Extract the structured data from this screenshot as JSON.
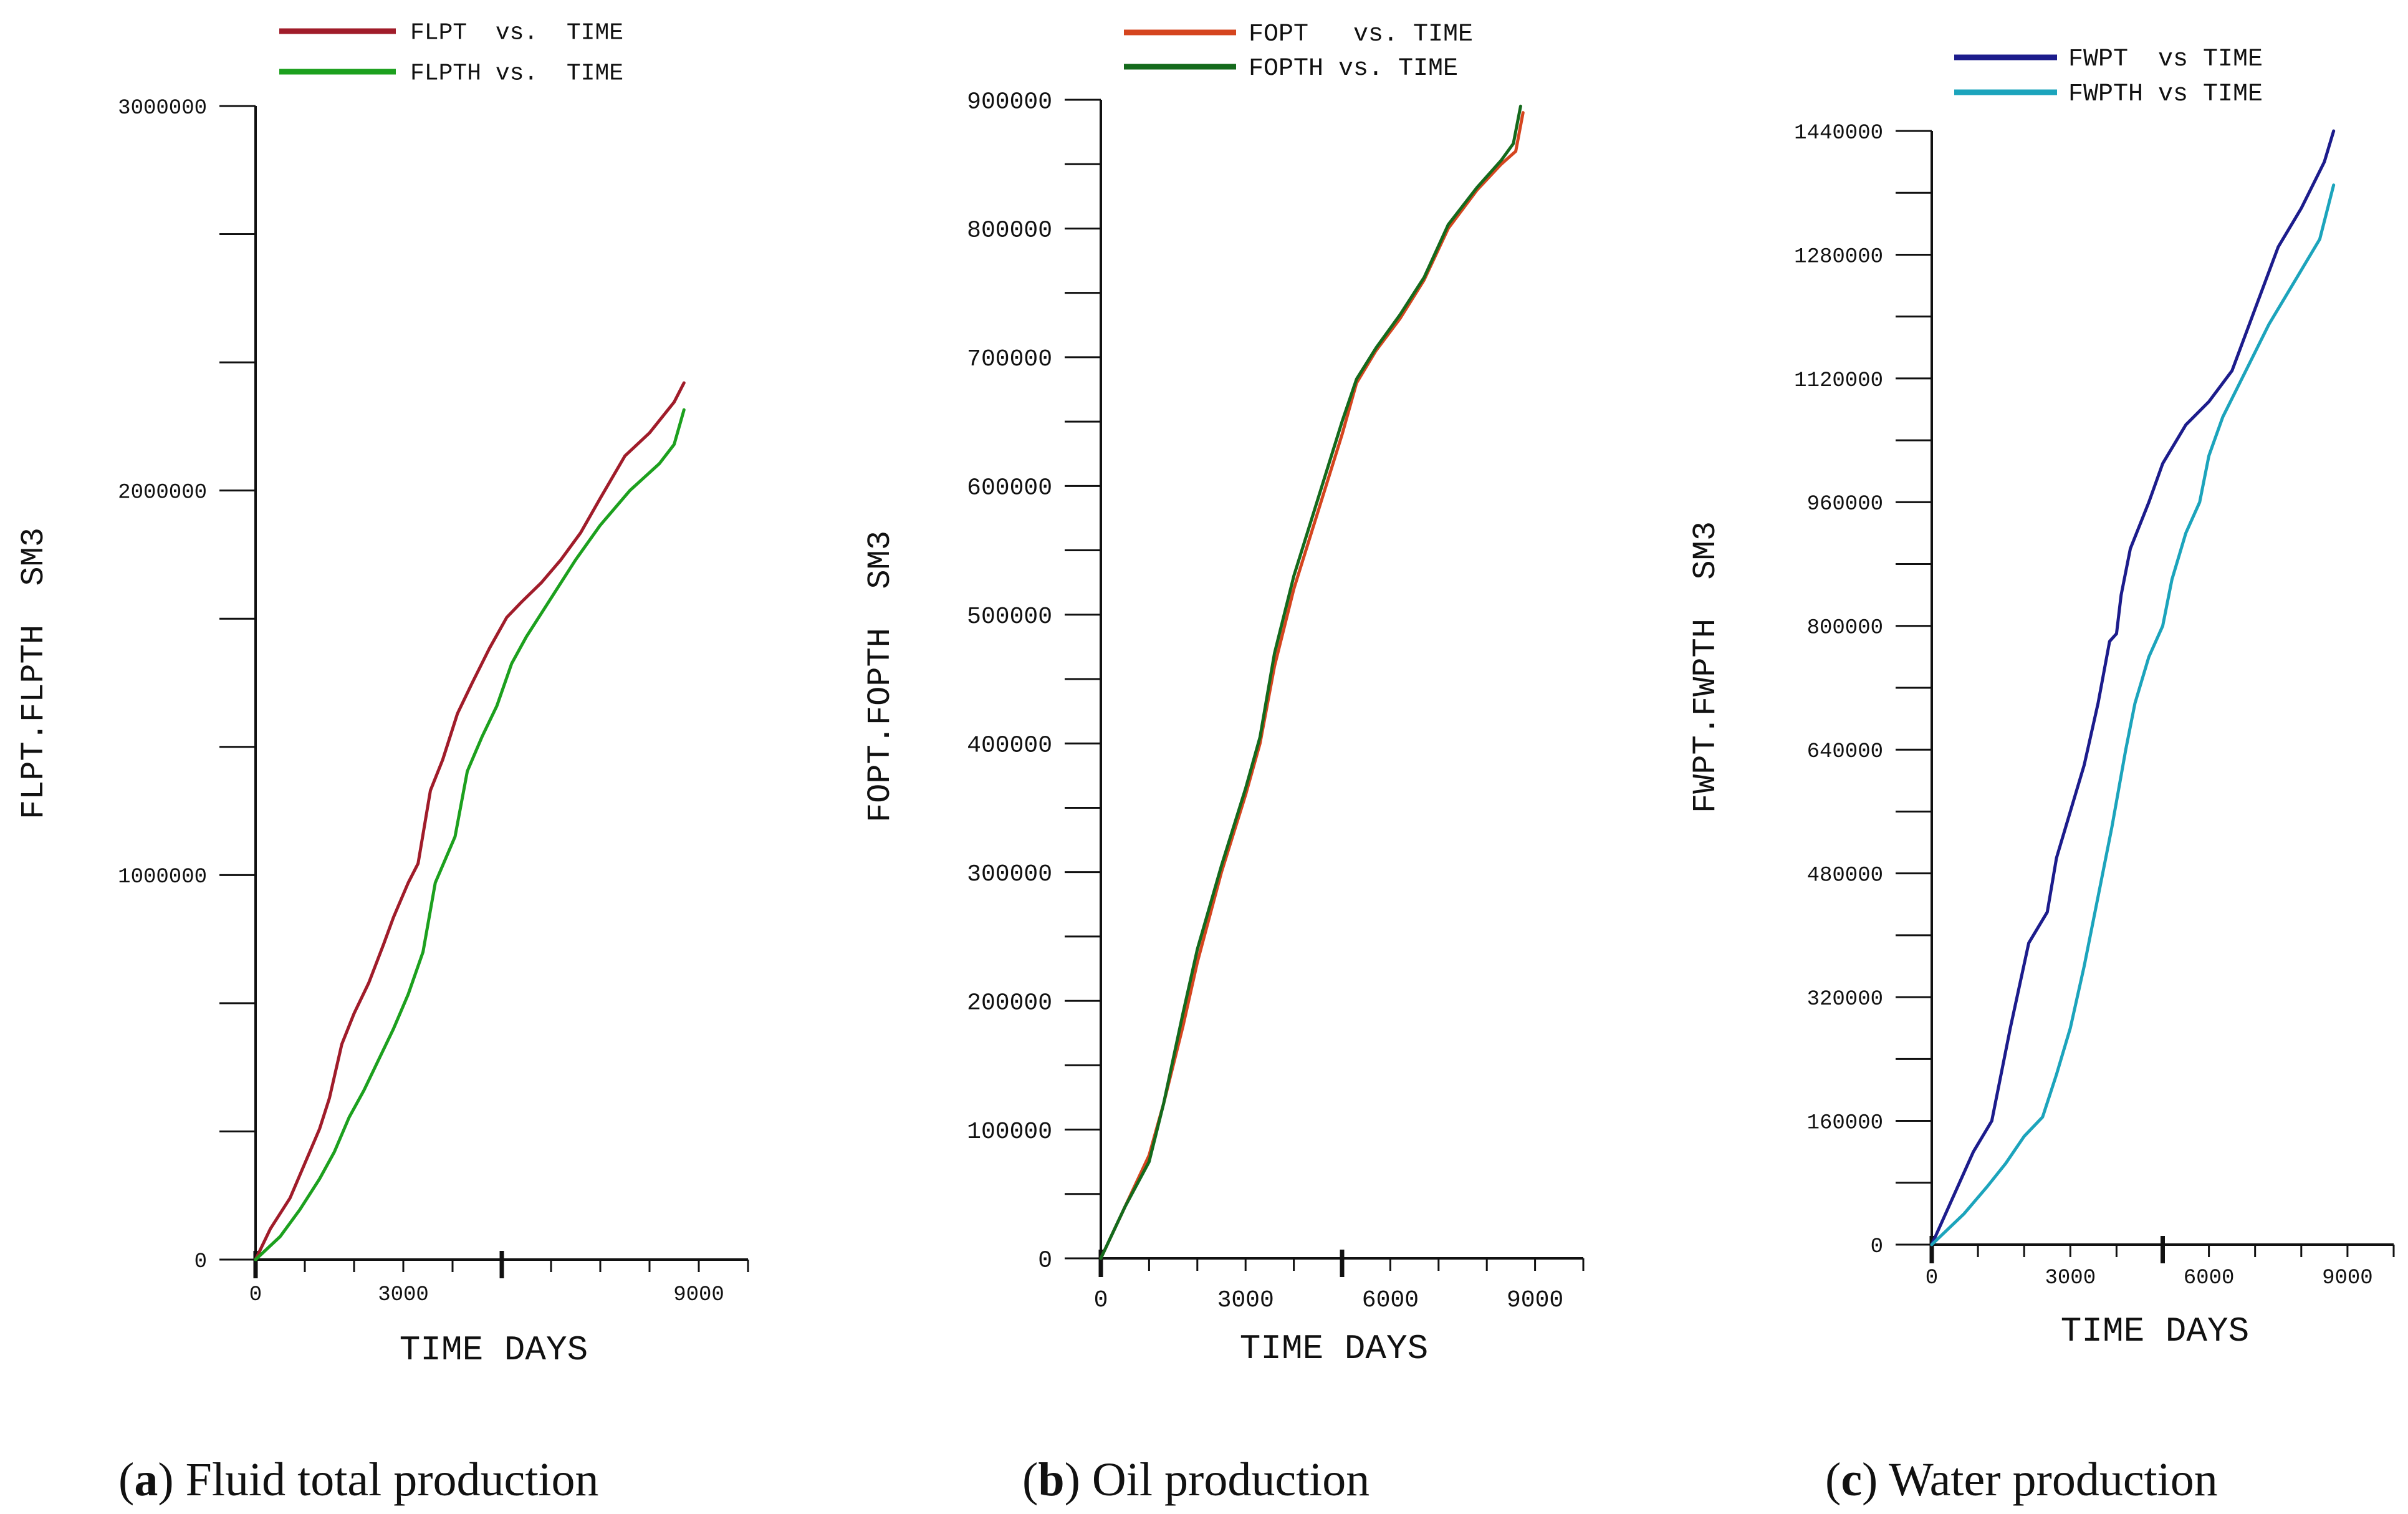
{
  "chart_data": [
    {
      "type": "line",
      "panel": "a",
      "ylabel": "FLPT.FLPTH  SM3",
      "xlabel": "TIME DAYS",
      "xlim": [
        0,
        10000
      ],
      "ylim": [
        0,
        3000000
      ],
      "xticks": [
        0,
        3000,
        9000
      ],
      "xtick_labels": [
        "0",
        "3000",
        "9000"
      ],
      "yticks": [
        0,
        1000000,
        2000000,
        3000000
      ],
      "ytick_labels": [
        "0",
        "1000000",
        "2000000",
        "3000000"
      ],
      "x_major_ticks": [
        0,
        5000
      ],
      "y_minor_step": 333333.333,
      "legend": {
        "position": "top",
        "entries": [
          "FLPT  vs.  TIME",
          "FLPTH vs.  TIME"
        ]
      },
      "series": [
        {
          "name": "FLPT  vs.  TIME",
          "color": "#a01c2a",
          "x": [
            0,
            300,
            700,
            1000,
            1300,
            1500,
            1750,
            2000,
            2300,
            2600,
            2800,
            3100,
            3300,
            3550,
            3800,
            4100,
            4400,
            4750,
            5100,
            5400,
            5800,
            6200,
            6600,
            7000,
            7500,
            8000,
            8500,
            8700
          ],
          "y": [
            0,
            80000,
            160000,
            250000,
            340000,
            420000,
            560000,
            640000,
            720000,
            820000,
            890000,
            980000,
            1030000,
            1220000,
            1300000,
            1420000,
            1500000,
            1590000,
            1670000,
            1710000,
            1760000,
            1820000,
            1890000,
            1980000,
            2090000,
            2150000,
            2230000,
            2280000
          ]
        },
        {
          "name": "FLPTH vs.  TIME",
          "color": "#1ca01e",
          "x": [
            0,
            500,
            900,
            1300,
            1600,
            1900,
            2200,
            2500,
            2800,
            3100,
            3400,
            3650,
            4050,
            4300,
            4600,
            4900,
            5200,
            5500,
            6000,
            6500,
            7000,
            7600,
            8200,
            8500,
            8700
          ],
          "y": [
            0,
            60000,
            130000,
            210000,
            280000,
            370000,
            440000,
            520000,
            600000,
            690000,
            800000,
            980000,
            1100000,
            1270000,
            1360000,
            1440000,
            1550000,
            1620000,
            1720000,
            1820000,
            1910000,
            2000000,
            2070000,
            2120000,
            2210000
          ]
        }
      ]
    },
    {
      "type": "line",
      "panel": "b",
      "ylabel": "FOPT.FOPTH  SM3",
      "xlabel": "TIME DAYS",
      "xlim": [
        0,
        10000
      ],
      "ylim": [
        0,
        900000
      ],
      "xticks": [
        0,
        3000,
        6000,
        9000
      ],
      "xtick_labels": [
        "0",
        "3000",
        "6000",
        "9000"
      ],
      "yticks": [
        0,
        100000,
        200000,
        300000,
        400000,
        500000,
        600000,
        700000,
        800000,
        900000
      ],
      "ytick_labels": [
        "0",
        "100000",
        "200000",
        "300000",
        "400000",
        "500000",
        "600000",
        "700000",
        "800000",
        "900000"
      ],
      "x_major_ticks": [
        0,
        5000
      ],
      "y_minor_step": 50000,
      "legend": {
        "position": "top",
        "entries": [
          "FOPT   vs. TIME",
          "FOPTH vs. TIME"
        ]
      },
      "series": [
        {
          "name": "FOPT   vs. TIME",
          "color": "#d5451f",
          "x": [
            0,
            500,
            1000,
            1300,
            1700,
            2000,
            2500,
            3000,
            3300,
            3600,
            4000,
            4500,
            5000,
            5300,
            5700,
            6200,
            6700,
            7200,
            7800,
            8300,
            8600,
            8750
          ],
          "y": [
            0,
            40000,
            80000,
            120000,
            180000,
            230000,
            300000,
            360000,
            400000,
            460000,
            520000,
            580000,
            640000,
            680000,
            705000,
            730000,
            760000,
            800000,
            830000,
            850000,
            860000,
            890000
          ]
        },
        {
          "name": "FOPTH vs. TIME",
          "color": "#146a1c",
          "x": [
            0,
            500,
            1000,
            1300,
            1700,
            2000,
            2500,
            3000,
            3300,
            3600,
            4000,
            4500,
            5000,
            5300,
            5700,
            6200,
            6700,
            7200,
            7800,
            8300,
            8550,
            8700
          ],
          "y": [
            0,
            40000,
            75000,
            120000,
            190000,
            240000,
            305000,
            365000,
            405000,
            470000,
            530000,
            590000,
            650000,
            683000,
            707000,
            733000,
            762000,
            803000,
            832000,
            853000,
            866000,
            895000
          ]
        }
      ]
    },
    {
      "type": "line",
      "panel": "c",
      "ylabel": "FWPT.FWPTH  SM3",
      "xlabel": "TIME DAYS",
      "xlim": [
        0,
        10000
      ],
      "ylim": [
        0,
        1440000
      ],
      "xticks": [
        0,
        3000,
        6000,
        9000
      ],
      "xtick_labels": [
        "0",
        "3000",
        "6000",
        "9000"
      ],
      "yticks": [
        0,
        160000,
        320000,
        480000,
        640000,
        800000,
        960000,
        1120000,
        1280000,
        1440000
      ],
      "ytick_labels": [
        "0",
        "160000",
        "320000",
        "480000",
        "640000",
        "800000",
        "960000",
        "1120000",
        "1280000",
        "1440000"
      ],
      "x_major_ticks": [
        0,
        5000
      ],
      "y_minor_step": 80000,
      "legend": {
        "position": "top",
        "entries": [
          "FWPT  vs TIME",
          "FWPTH vs TIME"
        ]
      },
      "series": [
        {
          "name": "FWPT  vs TIME",
          "color": "#1c1c8c",
          "x": [
            0,
            900,
            1300,
            1700,
            2100,
            2500,
            2700,
            3000,
            3300,
            3600,
            3850,
            4000,
            4100,
            4300,
            4700,
            5000,
            5500,
            6000,
            6500,
            7000,
            7500,
            8000,
            8500,
            8700
          ],
          "y": [
            0,
            120000,
            160000,
            280000,
            390000,
            430000,
            500000,
            560000,
            620000,
            700000,
            780000,
            790000,
            840000,
            900000,
            960000,
            1010000,
            1060000,
            1090000,
            1130000,
            1210000,
            1290000,
            1340000,
            1400000,
            1440000
          ]
        },
        {
          "name": "FWPTH vs TIME",
          "color": "#1ca4bc",
          "x": [
            0,
            700,
            1200,
            1600,
            2000,
            2400,
            2700,
            3000,
            3300,
            3600,
            3900,
            4200,
            4400,
            4700,
            5000,
            5200,
            5500,
            5800,
            6000,
            6300,
            6800,
            7300,
            7900,
            8400,
            8700
          ],
          "y": [
            0,
            40000,
            75000,
            105000,
            140000,
            165000,
            220000,
            280000,
            360000,
            450000,
            540000,
            640000,
            700000,
            760000,
            800000,
            860000,
            920000,
            960000,
            1020000,
            1070000,
            1130000,
            1190000,
            1250000,
            1300000,
            1370000
          ]
        }
      ]
    }
  ],
  "captions": [
    {
      "label": "a",
      "text": "Fluid total production"
    },
    {
      "label": "b",
      "text": "Oil production"
    },
    {
      "label": "c",
      "text": "Water production"
    }
  ]
}
